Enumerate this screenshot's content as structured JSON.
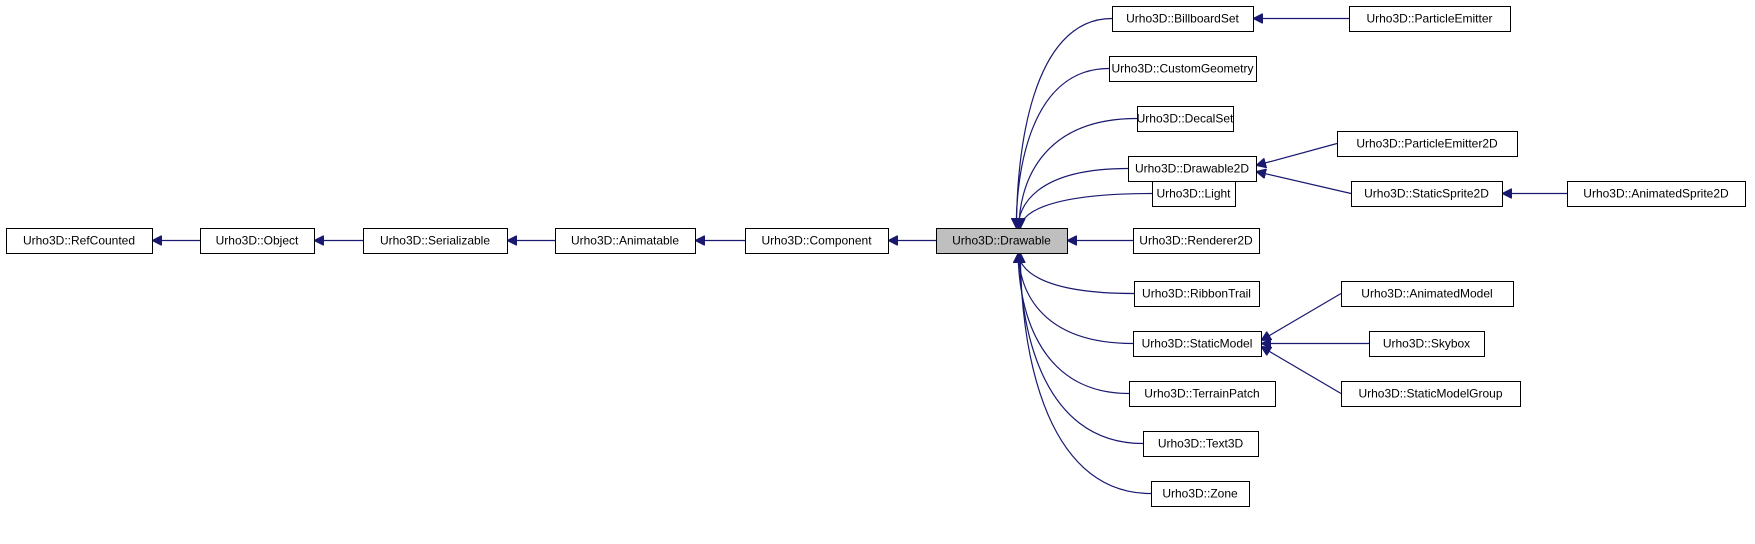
{
  "diagram": {
    "current": "drawable",
    "nodes": [
      {
        "id": "refcounted",
        "label": "Urho3D::RefCounted"
      },
      {
        "id": "object",
        "label": "Urho3D::Object"
      },
      {
        "id": "serializable",
        "label": "Urho3D::Serializable"
      },
      {
        "id": "animatable",
        "label": "Urho3D::Animatable"
      },
      {
        "id": "component",
        "label": "Urho3D::Component"
      },
      {
        "id": "drawable",
        "label": "Urho3D::Drawable"
      },
      {
        "id": "billboardset",
        "label": "Urho3D::BillboardSet"
      },
      {
        "id": "customgeometry",
        "label": "Urho3D::CustomGeometry"
      },
      {
        "id": "decalset",
        "label": "Urho3D::DecalSet"
      },
      {
        "id": "drawable2d",
        "label": "Urho3D::Drawable2D"
      },
      {
        "id": "light",
        "label": "Urho3D::Light"
      },
      {
        "id": "renderer2d",
        "label": "Urho3D::Renderer2D"
      },
      {
        "id": "ribbontrail",
        "label": "Urho3D::RibbonTrail"
      },
      {
        "id": "staticmodel",
        "label": "Urho3D::StaticModel"
      },
      {
        "id": "terrainpatch",
        "label": "Urho3D::TerrainPatch"
      },
      {
        "id": "text3d",
        "label": "Urho3D::Text3D"
      },
      {
        "id": "zone",
        "label": "Urho3D::Zone"
      },
      {
        "id": "particleemitter",
        "label": "Urho3D::ParticleEmitter"
      },
      {
        "id": "particleemitter2d",
        "label": "Urho3D::ParticleEmitter2D"
      },
      {
        "id": "staticsprite2d",
        "label": "Urho3D::StaticSprite2D"
      },
      {
        "id": "animatedsprite2d",
        "label": "Urho3D::AnimatedSprite2D"
      },
      {
        "id": "animatedmodel",
        "label": "Urho3D::AnimatedModel"
      },
      {
        "id": "skybox",
        "label": "Urho3D::Skybox"
      },
      {
        "id": "staticmodelgroup",
        "label": "Urho3D::StaticModelGroup"
      }
    ],
    "edges": [
      {
        "from": "object",
        "to": "refcounted"
      },
      {
        "from": "serializable",
        "to": "object"
      },
      {
        "from": "animatable",
        "to": "serializable"
      },
      {
        "from": "component",
        "to": "animatable"
      },
      {
        "from": "drawable",
        "to": "component"
      },
      {
        "from": "billboardset",
        "to": "drawable"
      },
      {
        "from": "customgeometry",
        "to": "drawable"
      },
      {
        "from": "decalset",
        "to": "drawable"
      },
      {
        "from": "drawable2d",
        "to": "drawable"
      },
      {
        "from": "light",
        "to": "drawable"
      },
      {
        "from": "renderer2d",
        "to": "drawable"
      },
      {
        "from": "ribbontrail",
        "to": "drawable"
      },
      {
        "from": "staticmodel",
        "to": "drawable"
      },
      {
        "from": "terrainpatch",
        "to": "drawable"
      },
      {
        "from": "text3d",
        "to": "drawable"
      },
      {
        "from": "zone",
        "to": "drawable"
      },
      {
        "from": "particleemitter",
        "to": "billboardset"
      },
      {
        "from": "particleemitter2d",
        "to": "drawable2d"
      },
      {
        "from": "staticsprite2d",
        "to": "drawable2d"
      },
      {
        "from": "animatedsprite2d",
        "to": "staticsprite2d"
      },
      {
        "from": "animatedmodel",
        "to": "staticmodel"
      },
      {
        "from": "skybox",
        "to": "staticmodel"
      },
      {
        "from": "staticmodelgroup",
        "to": "staticmodel"
      }
    ]
  }
}
